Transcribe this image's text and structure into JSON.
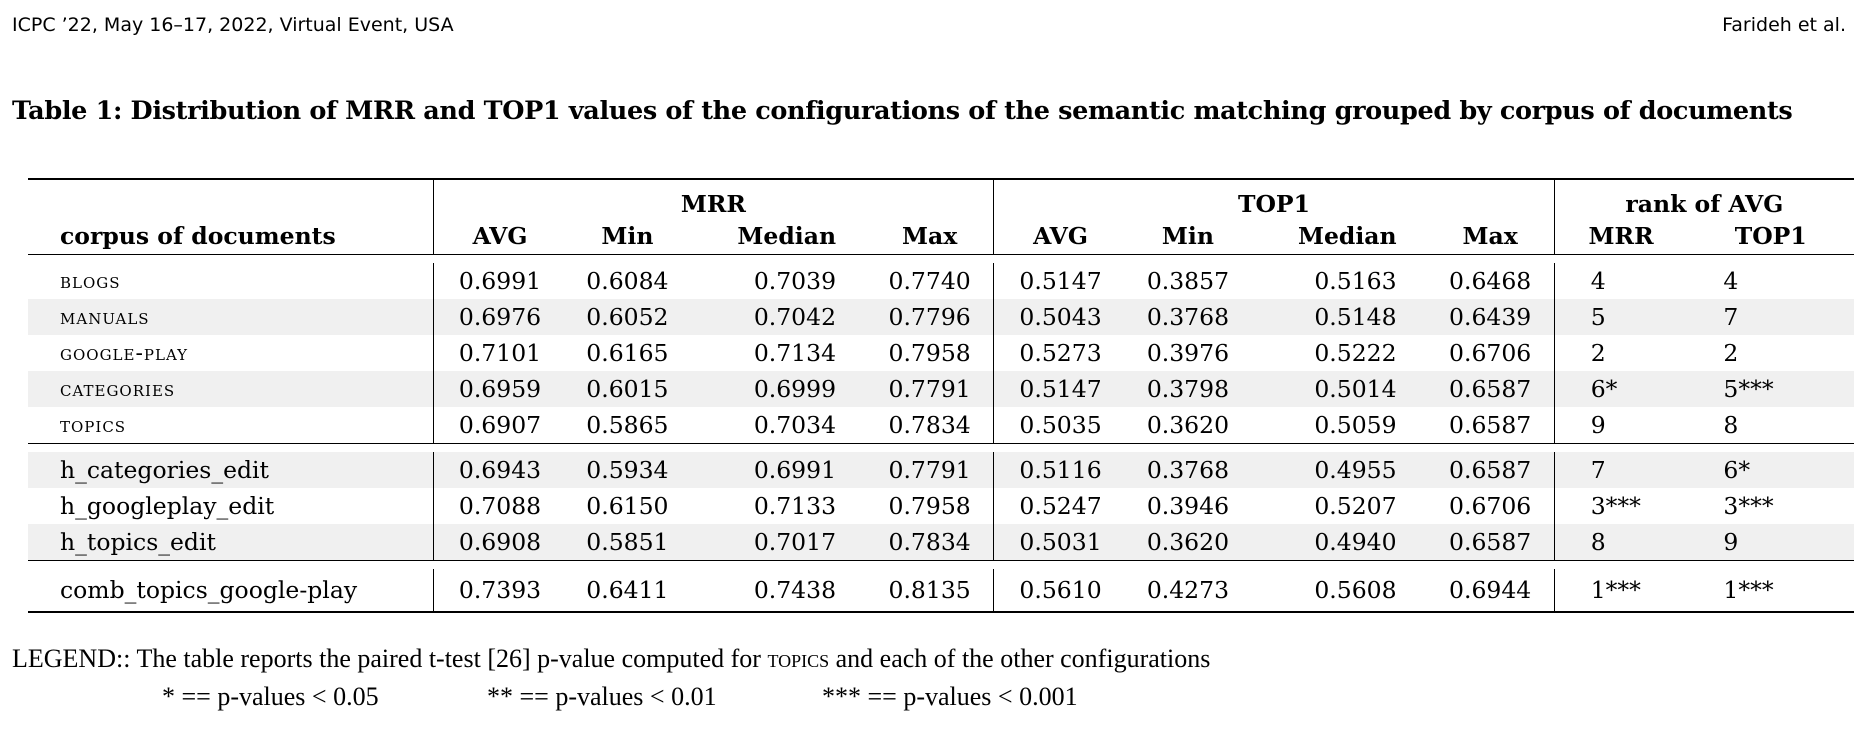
{
  "header": {
    "left": "ICPC ’22, May 16–17, 2022, Virtual Event, USA",
    "right": "Farideh et al."
  },
  "caption": "Table 1: Distribution of MRR and TOP1 values of the configurations of the semantic matching grouped by corpus of documents",
  "table": {
    "group_headers": {
      "mrr": "MRR",
      "top1": "TOP1",
      "rank": "rank of AVG"
    },
    "columns": {
      "corpus": "corpus of documents",
      "avg": "AVG",
      "min": "Min",
      "median": "Median",
      "max": "Max",
      "avg2": "AVG",
      "min2": "Min",
      "median2": "Median",
      "max2": "Max",
      "rank_mrr": "MRR",
      "rank_top1": "TOP1"
    },
    "rows": [
      [
        "blogs",
        "0.6991",
        "0.6084",
        "0.7039",
        "0.7740",
        "0.5147",
        "0.3857",
        "0.5163",
        "0.6468",
        "4",
        "4"
      ],
      [
        "manuals",
        "0.6976",
        "0.6052",
        "0.7042",
        "0.7796",
        "0.5043",
        "0.3768",
        "0.5148",
        "0.6439",
        "5",
        "7"
      ],
      [
        "google-play",
        "0.7101",
        "0.6165",
        "0.7134",
        "0.7958",
        "0.5273",
        "0.3976",
        "0.5222",
        "0.6706",
        "2",
        "2"
      ],
      [
        "categories",
        "0.6959",
        "0.6015",
        "0.6999",
        "0.7791",
        "0.5147",
        "0.3798",
        "0.5014",
        "0.6587",
        "6*",
        "5***"
      ],
      [
        "topics",
        "0.6907",
        "0.5865",
        "0.7034",
        "0.7834",
        "0.5035",
        "0.3620",
        "0.5059",
        "0.6587",
        "9",
        "8"
      ],
      [
        "h_categories_edit",
        "0.6943",
        "0.5934",
        "0.6991",
        "0.7791",
        "0.5116",
        "0.3768",
        "0.4955",
        "0.6587",
        "7",
        "6*"
      ],
      [
        "h_googleplay_edit",
        "0.7088",
        "0.6150",
        "0.7133",
        "0.7958",
        "0.5247",
        "0.3946",
        "0.5207",
        "0.6706",
        "3***",
        "3***"
      ],
      [
        "h_topics_edit",
        "0.6908",
        "0.5851",
        "0.7017",
        "0.7834",
        "0.5031",
        "0.3620",
        "0.4940",
        "0.6587",
        "8",
        "9"
      ],
      [
        "comb_topics_google-play",
        "0.7393",
        "0.6411",
        "0.7438",
        "0.8135",
        "0.5610",
        "0.4273",
        "0.5608",
        "0.6944",
        "1***",
        "1***"
      ]
    ]
  },
  "legend": {
    "prefix": "LEGEND:: The table reports the paired t-test [26] p-value computed for ",
    "topics_word": "topics",
    "suffix": " and each of the other configurations",
    "p1": "* == p-values < 0.05",
    "p2": "** == p-values < 0.01",
    "p3": "*** == p-values < 0.001"
  }
}
